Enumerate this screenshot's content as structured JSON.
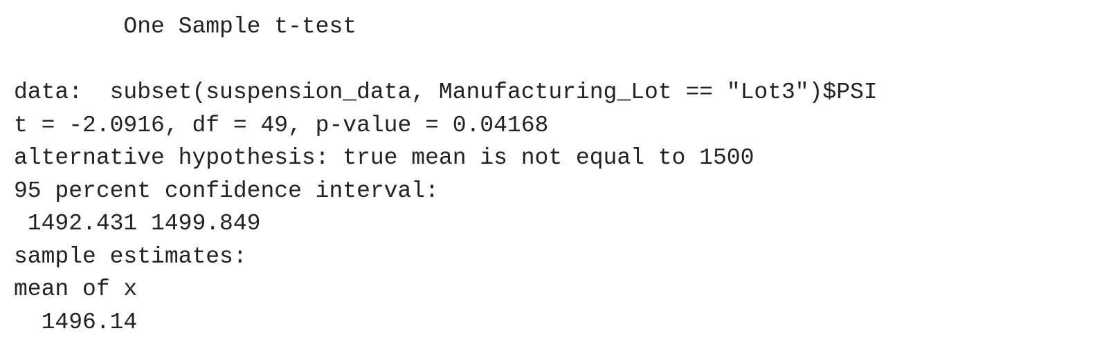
{
  "output": {
    "title": "        One Sample t-test",
    "data_line": "data:  subset(suspension_data, Manufacturing_Lot == \"Lot3\")$PSI",
    "stats_line": "t = -2.0916, df = 49, p-value = 0.04168",
    "alt_hypothesis": "alternative hypothesis: true mean is not equal to 1500",
    "ci_label": "95 percent confidence interval:",
    "ci_values": " 1492.431 1499.849",
    "estimates_label": "sample estimates:",
    "estimate_name": "mean of x",
    "estimate_value": "  1496.14"
  }
}
